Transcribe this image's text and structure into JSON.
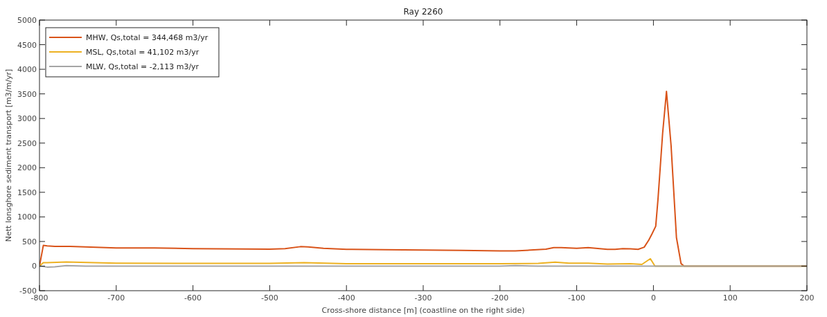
{
  "chart_data": {
    "type": "line",
    "title": "Ray 2260",
    "xlabel": "Cross-shore distance [m] (coastline on the right side)",
    "ylabel": "Nett lonsghore sediment transport [m3/m/yr]",
    "xlim": [
      -800,
      200
    ],
    "xticks": [
      -800,
      -700,
      -600,
      -500,
      -400,
      -300,
      -200,
      -100,
      0,
      100,
      200
    ],
    "ylim": [
      -500,
      5000
    ],
    "yticks": [
      -500,
      0,
      500,
      1000,
      1500,
      2000,
      2500,
      3000,
      3500,
      4000,
      4500,
      5000
    ],
    "grid": false,
    "legend": "top left",
    "marker": "none",
    "line_style": "solid",
    "series": [
      {
        "name": "MHW, Qs,total = 344,468 m3/yr",
        "color": "#d95319",
        "x": [
          -800,
          -795,
          -790,
          -780,
          -760,
          -700,
          -650,
          -600,
          -500,
          -480,
          -460,
          -450,
          -430,
          -400,
          -350,
          -300,
          -250,
          -200,
          -180,
          -160,
          -140,
          -130,
          -120,
          -100,
          -85,
          -75,
          -60,
          -50,
          -40,
          -30,
          -20,
          -12,
          -6,
          -2,
          3,
          6,
          12,
          17,
          23,
          30,
          36,
          40,
          200
        ],
        "values": [
          0,
          420,
          410,
          400,
          400,
          370,
          370,
          355,
          345,
          355,
          395,
          390,
          360,
          340,
          335,
          325,
          320,
          310,
          310,
          325,
          345,
          375,
          375,
          360,
          375,
          360,
          340,
          340,
          355,
          350,
          340,
          385,
          530,
          650,
          810,
          1370,
          2700,
          3550,
          2450,
          580,
          50,
          0,
          0
        ]
      },
      {
        "name": "MSL, Qs,total = 41,102 m3/yr",
        "color": "#edb120",
        "x": [
          -800,
          -795,
          -790,
          -765,
          -700,
          -600,
          -500,
          -455,
          -400,
          -300,
          -200,
          -150,
          -128,
          -110,
          -85,
          -60,
          -30,
          -15,
          -4,
          2,
          200
        ],
        "values": [
          0,
          70,
          70,
          85,
          60,
          55,
          55,
          70,
          50,
          50,
          50,
          55,
          80,
          60,
          60,
          40,
          50,
          35,
          150,
          0,
          0
        ]
      },
      {
        "name": "MLW, Qs,total = -2,113 m3/yr",
        "color": "#a5a5a5",
        "x": [
          -800,
          -790,
          -780,
          -765,
          -740,
          -600,
          -400,
          -200,
          -180,
          -150,
          0,
          200
        ],
        "values": [
          0,
          -20,
          -15,
          10,
          0,
          0,
          0,
          0,
          10,
          0,
          0,
          0
        ]
      }
    ]
  }
}
